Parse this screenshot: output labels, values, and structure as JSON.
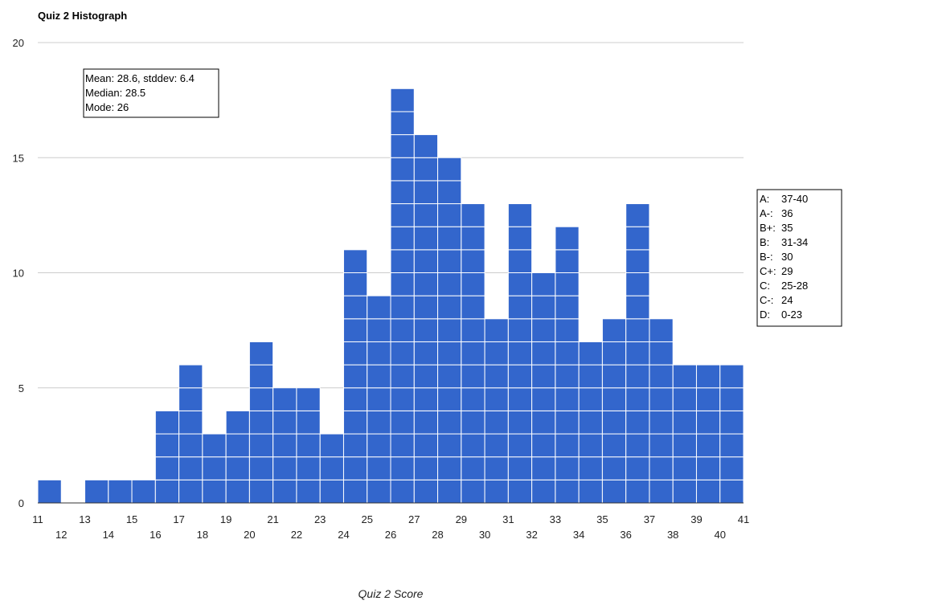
{
  "chart_data": {
    "type": "bar",
    "title": "Quiz 2 Histograph",
    "xlabel": "Quiz 2 Score",
    "ylabel": "",
    "ylim": [
      0,
      20
    ],
    "yticks": [
      0,
      5,
      10,
      15,
      20
    ],
    "grid": true,
    "bar_color": "#3366cc",
    "categories": [
      11,
      12,
      13,
      14,
      15,
      16,
      17,
      18,
      19,
      20,
      21,
      22,
      23,
      24,
      25,
      26,
      27,
      28,
      29,
      30,
      31,
      32,
      33,
      34,
      35,
      36,
      37,
      38,
      39,
      40
    ],
    "values": [
      1,
      0,
      1,
      1,
      1,
      4,
      6,
      3,
      4,
      7,
      5,
      5,
      3,
      11,
      9,
      18,
      16,
      15,
      13,
      8,
      13,
      10,
      12,
      7,
      8,
      13,
      8,
      6,
      6,
      6
    ],
    "xticks_top": [
      "11",
      "13",
      "15",
      "17",
      "19",
      "21",
      "23",
      "25",
      "27",
      "29",
      "31",
      "33",
      "35",
      "37",
      "39",
      "41"
    ],
    "xticks_bottom": [
      "12",
      "14",
      "16",
      "18",
      "20",
      "22",
      "24",
      "26",
      "28",
      "30",
      "32",
      "34",
      "36",
      "38",
      "40"
    ],
    "stats_box": [
      "Mean: 28.6, stddev: 6.4",
      "Median: 28.5",
      "Mode: 26"
    ],
    "grade_box": [
      {
        "grade": "A:",
        "range": "37-40"
      },
      {
        "grade": "A-:",
        "range": "36"
      },
      {
        "grade": "B+:",
        "range": "35"
      },
      {
        "grade": "B:",
        "range": "31-34"
      },
      {
        "grade": "B-:",
        "range": "30"
      },
      {
        "grade": "C+:",
        "range": "29"
      },
      {
        "grade": "C:",
        "range": "25-28"
      },
      {
        "grade": "C-:",
        "range": "24"
      },
      {
        "grade": "D:",
        "range": "0-23"
      }
    ]
  }
}
